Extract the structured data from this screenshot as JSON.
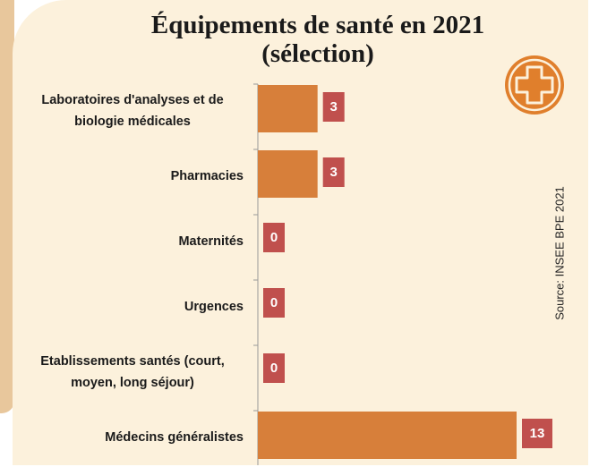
{
  "chart_data": {
    "type": "bar",
    "orientation": "horizontal",
    "title": "Équipements de santé en 2021 (sélection)",
    "categories": [
      "Laboratoires d'analyses et de biologie médicales",
      "Pharmacies",
      "Maternités",
      "Urgences",
      "Etablissements santés (court, moyen, long séjour)",
      "Médecins généralistes"
    ],
    "values": [
      3,
      3,
      0,
      0,
      0,
      13
    ],
    "color": "#d77f3a",
    "label_color": "#c0504d",
    "source": "Source: INSEE BPE 2021"
  }
}
